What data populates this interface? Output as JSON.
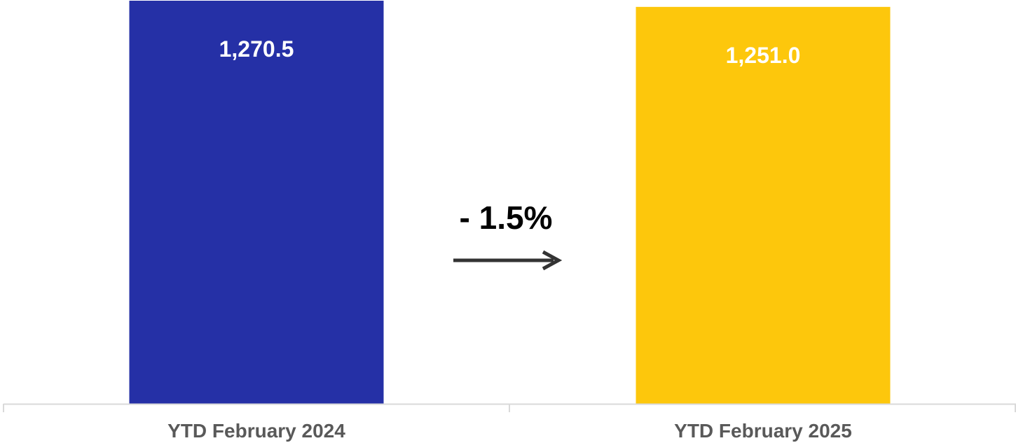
{
  "chart_data": {
    "type": "bar",
    "categories": [
      "YTD February 2024",
      "YTD February 2025"
    ],
    "values": [
      1270.5,
      1251.0
    ],
    "value_labels": [
      "1,270.5",
      "1,251.0"
    ],
    "colors": [
      "#2530A6",
      "#FDC70C"
    ],
    "title": "",
    "xlabel": "",
    "ylabel": "",
    "ylim": [
      0,
      1270.5
    ],
    "grid": false,
    "annotations": [
      {
        "text": "- 1.5%",
        "type": "change-arrow",
        "direction": "right",
        "color": "#333333"
      }
    ]
  }
}
